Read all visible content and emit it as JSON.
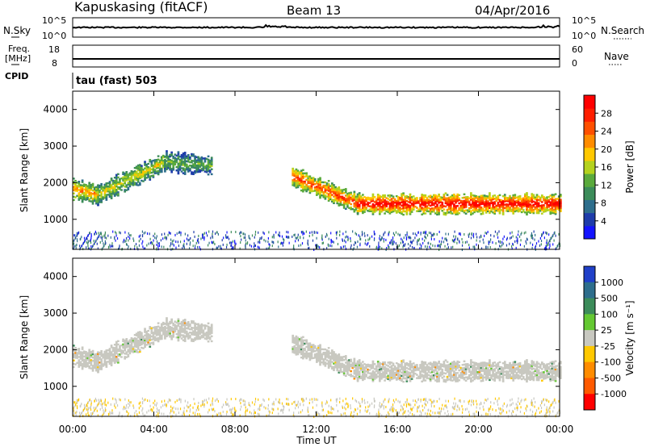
{
  "header": {
    "station": "Kapuskasing (fitACF)",
    "beam": "Beam 13",
    "date": "04/Apr/2016"
  },
  "noise_panel": {
    "left_label": "N.Sky",
    "left_tick_top": "10^5",
    "left_tick_bottom": "10^0",
    "right_tick_top": "10^5",
    "right_tick_bottom": "10^0",
    "right_label": "N.Search"
  },
  "freq_panel": {
    "left_label_line1": "Freq.",
    "left_label_line2": "[MHz]",
    "left_tick_top": "18",
    "left_tick_bottom": "8",
    "right_tick_top": "60",
    "right_tick_bottom": "0",
    "right_label": "Nave"
  },
  "cpid": {
    "label": "CPID",
    "mode_text": "tau (fast) 503"
  },
  "axes": {
    "ylabel": "Slant Range [km]",
    "xlabel": "Time UT",
    "yticks": [
      "1000",
      "2000",
      "3000",
      "4000"
    ],
    "xticks": [
      "00:00",
      "04:00",
      "08:00",
      "12:00",
      "16:00",
      "20:00",
      "00:00"
    ]
  },
  "power_colorbar": {
    "label": "Power [dB]",
    "ticks": [
      "4",
      "8",
      "12",
      "16",
      "20",
      "24",
      "28"
    ],
    "colors": [
      "#1414ff",
      "#1e3caa",
      "#2e6e8c",
      "#3c8c5a",
      "#5aaa3c",
      "#b4d21e",
      "#ffc800",
      "#ff8c00",
      "#ff5000",
      "#ff1e00",
      "#ff0000"
    ]
  },
  "velocity_colorbar": {
    "label": "Velocity [m s⁻¹]",
    "ticks": [
      "1000",
      "500",
      "100",
      "25",
      "-25",
      "-100",
      "-500",
      "-1000"
    ],
    "colors": [
      "#2040c8",
      "#2e6e8c",
      "#3c8c5a",
      "#64c832",
      "#c8c8c0",
      "#ffc800",
      "#ff8c00",
      "#ff5a00",
      "#ff0000"
    ]
  },
  "chart_data": [
    {
      "type": "heatmap",
      "title": "Power",
      "x_range_hours": [
        0,
        24
      ],
      "y_range_km": [
        180,
        4500
      ],
      "color_scale_range_db": [
        0,
        30
      ],
      "features": [
        {
          "start_hour": 0.0,
          "end_hour": 1.2,
          "range_km_start": 1850,
          "range_km_end": 1700,
          "power_db": 20
        },
        {
          "start_hour": 1.2,
          "end_hour": 4.5,
          "range_km_start": 1700,
          "range_km_end": 2600,
          "power_db": 16
        },
        {
          "start_hour": 4.5,
          "end_hour": 6.8,
          "range_km_start": 2600,
          "range_km_end": 2500,
          "power_db": 12
        },
        {
          "start_hour": 10.8,
          "end_hour": 14.0,
          "range_km_start": 2200,
          "range_km_end": 1450,
          "power_db": 24
        },
        {
          "start_hour": 14.0,
          "end_hour": 24.0,
          "range_km_start": 1450,
          "range_km_end": 1450,
          "power_db": 28
        }
      ]
    },
    {
      "type": "heatmap",
      "title": "Velocity",
      "x_range_hours": [
        0,
        24
      ],
      "y_range_km": [
        180,
        4500
      ],
      "color_scale_range_ms": [
        -1000,
        1000
      ],
      "features": [
        {
          "start_hour": 0.0,
          "end_hour": 4.5,
          "range_km_start": 1850,
          "range_km_end": 2600,
          "velocity_ms": 0
        },
        {
          "start_hour": 4.5,
          "end_hour": 6.8,
          "range_km_start": 2600,
          "range_km_end": 2500,
          "velocity_ms": 0
        },
        {
          "start_hour": 10.8,
          "end_hour": 24.0,
          "range_km_start": 2200,
          "range_km_end": 1450,
          "velocity_ms": 0
        }
      ]
    }
  ]
}
